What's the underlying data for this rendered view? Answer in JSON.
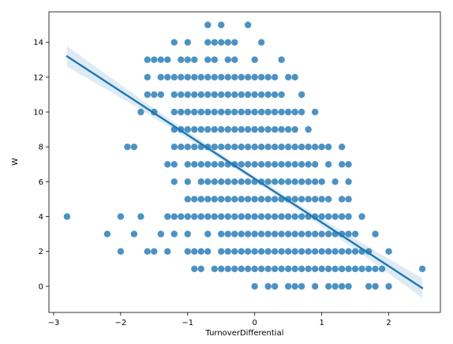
{
  "chart_data": {
    "type": "scatter",
    "title": "",
    "xlabel": "TurnoverDifferential",
    "ylabel": "W",
    "xlim": [
      -3.07,
      2.77
    ],
    "ylim": [
      -1.5,
      15.75
    ],
    "xticks": [
      -3,
      -2,
      -1,
      0,
      1,
      2
    ],
    "yticks": [
      0,
      2,
      4,
      6,
      8,
      10,
      12,
      14
    ],
    "grid": false,
    "legend": "none",
    "colors": {
      "points": "#1f77b4",
      "line": "#1f77b4",
      "band": "#1f77b4"
    },
    "point_alpha": 0.8,
    "regression": {
      "x": [
        -2.8,
        2.5
      ],
      "y": [
        13.2,
        -0.1
      ],
      "ci_halfwidth_at_ends": 0.6,
      "ci_halfwidth_at_center": 0.15,
      "ci_center_x": -0.1
    },
    "points": [
      [
        -2.8,
        4
      ],
      [
        -2.2,
        3
      ],
      [
        -2.0,
        2
      ],
      [
        -2.0,
        4
      ],
      [
        -1.9,
        8
      ],
      [
        -1.8,
        8
      ],
      [
        -1.8,
        3
      ],
      [
        -1.7,
        4
      ],
      [
        -1.7,
        10
      ],
      [
        -1.6,
        2
      ],
      [
        -1.6,
        11
      ],
      [
        -1.6,
        12
      ],
      [
        -1.6,
        13
      ],
      [
        -1.5,
        2
      ],
      [
        -1.5,
        11
      ],
      [
        -1.5,
        13
      ],
      [
        -1.5,
        10
      ],
      [
        -1.4,
        3
      ],
      [
        -1.4,
        11
      ],
      [
        -1.4,
        12
      ],
      [
        -1.4,
        13
      ],
      [
        -1.3,
        2
      ],
      [
        -1.3,
        4
      ],
      [
        -1.3,
        7
      ],
      [
        -1.3,
        12
      ],
      [
        -1.3,
        13
      ],
      [
        -1.2,
        3
      ],
      [
        -1.2,
        4
      ],
      [
        -1.2,
        6
      ],
      [
        -1.2,
        7
      ],
      [
        -1.2,
        8
      ],
      [
        -1.2,
        9
      ],
      [
        -1.2,
        10
      ],
      [
        -1.2,
        11
      ],
      [
        -1.2,
        12
      ],
      [
        -1.2,
        14
      ],
      [
        -1.1,
        4
      ],
      [
        -1.1,
        8
      ],
      [
        -1.1,
        9
      ],
      [
        -1.1,
        10
      ],
      [
        -1.1,
        11
      ],
      [
        -1.1,
        12
      ],
      [
        -1.1,
        13
      ],
      [
        -1.0,
        2
      ],
      [
        -1.0,
        3
      ],
      [
        -1.0,
        4
      ],
      [
        -1.0,
        5
      ],
      [
        -1.0,
        6
      ],
      [
        -1.0,
        7
      ],
      [
        -1.0,
        8
      ],
      [
        -1.0,
        9
      ],
      [
        -1.0,
        10
      ],
      [
        -1.0,
        11
      ],
      [
        -1.0,
        12
      ],
      [
        -1.0,
        13
      ],
      [
        -1.0,
        14
      ],
      [
        -0.9,
        1
      ],
      [
        -0.9,
        2
      ],
      [
        -0.9,
        4
      ],
      [
        -0.9,
        5
      ],
      [
        -0.9,
        7
      ],
      [
        -0.9,
        8
      ],
      [
        -0.9,
        9
      ],
      [
        -0.9,
        10
      ],
      [
        -0.9,
        11
      ],
      [
        -0.9,
        12
      ],
      [
        -0.9,
        13
      ],
      [
        -0.8,
        1
      ],
      [
        -0.8,
        2
      ],
      [
        -0.8,
        4
      ],
      [
        -0.8,
        5
      ],
      [
        -0.8,
        6
      ],
      [
        -0.8,
        7
      ],
      [
        -0.8,
        8
      ],
      [
        -0.8,
        9
      ],
      [
        -0.8,
        10
      ],
      [
        -0.8,
        11
      ],
      [
        -0.8,
        12
      ],
      [
        -0.7,
        2
      ],
      [
        -0.7,
        3
      ],
      [
        -0.7,
        4
      ],
      [
        -0.7,
        5
      ],
      [
        -0.7,
        6
      ],
      [
        -0.7,
        7
      ],
      [
        -0.7,
        8
      ],
      [
        -0.7,
        9
      ],
      [
        -0.7,
        10
      ],
      [
        -0.7,
        11
      ],
      [
        -0.7,
        12
      ],
      [
        -0.7,
        13
      ],
      [
        -0.7,
        14
      ],
      [
        -0.7,
        15
      ],
      [
        -0.6,
        1
      ],
      [
        -0.6,
        4
      ],
      [
        -0.6,
        5
      ],
      [
        -0.6,
        6
      ],
      [
        -0.6,
        7
      ],
      [
        -0.6,
        8
      ],
      [
        -0.6,
        9
      ],
      [
        -0.6,
        10
      ],
      [
        -0.6,
        11
      ],
      [
        -0.6,
        12
      ],
      [
        -0.6,
        13
      ],
      [
        -0.6,
        14
      ],
      [
        -0.5,
        1
      ],
      [
        -0.5,
        2
      ],
      [
        -0.5,
        3
      ],
      [
        -0.5,
        4
      ],
      [
        -0.5,
        5
      ],
      [
        -0.5,
        6
      ],
      [
        -0.5,
        7
      ],
      [
        -0.5,
        8
      ],
      [
        -0.5,
        9
      ],
      [
        -0.5,
        10
      ],
      [
        -0.5,
        11
      ],
      [
        -0.5,
        12
      ],
      [
        -0.5,
        14
      ],
      [
        -0.5,
        15
      ],
      [
        -0.4,
        1
      ],
      [
        -0.4,
        2
      ],
      [
        -0.4,
        3
      ],
      [
        -0.4,
        4
      ],
      [
        -0.4,
        5
      ],
      [
        -0.4,
        6
      ],
      [
        -0.4,
        7
      ],
      [
        -0.4,
        8
      ],
      [
        -0.4,
        9
      ],
      [
        -0.4,
        10
      ],
      [
        -0.4,
        11
      ],
      [
        -0.4,
        12
      ],
      [
        -0.4,
        13
      ],
      [
        -0.4,
        14
      ],
      [
        -0.3,
        1
      ],
      [
        -0.3,
        2
      ],
      [
        -0.3,
        3
      ],
      [
        -0.3,
        4
      ],
      [
        -0.3,
        5
      ],
      [
        -0.3,
        6
      ],
      [
        -0.3,
        7
      ],
      [
        -0.3,
        8
      ],
      [
        -0.3,
        9
      ],
      [
        -0.3,
        10
      ],
      [
        -0.3,
        11
      ],
      [
        -0.3,
        12
      ],
      [
        -0.3,
        13
      ],
      [
        -0.3,
        14
      ],
      [
        -0.2,
        1
      ],
      [
        -0.2,
        2
      ],
      [
        -0.2,
        3
      ],
      [
        -0.2,
        4
      ],
      [
        -0.2,
        5
      ],
      [
        -0.2,
        6
      ],
      [
        -0.2,
        7
      ],
      [
        -0.2,
        8
      ],
      [
        -0.2,
        9
      ],
      [
        -0.2,
        10
      ],
      [
        -0.2,
        11
      ],
      [
        -0.2,
        12
      ],
      [
        -0.1,
        1
      ],
      [
        -0.1,
        2
      ],
      [
        -0.1,
        3
      ],
      [
        -0.1,
        4
      ],
      [
        -0.1,
        5
      ],
      [
        -0.1,
        6
      ],
      [
        -0.1,
        7
      ],
      [
        -0.1,
        8
      ],
      [
        -0.1,
        9
      ],
      [
        -0.1,
        10
      ],
      [
        -0.1,
        11
      ],
      [
        -0.1,
        12
      ],
      [
        -0.1,
        15
      ],
      [
        0.0,
        0
      ],
      [
        0.0,
        1
      ],
      [
        0.0,
        2
      ],
      [
        0.0,
        3
      ],
      [
        0.0,
        4
      ],
      [
        0.0,
        5
      ],
      [
        0.0,
        6
      ],
      [
        0.0,
        7
      ],
      [
        0.0,
        8
      ],
      [
        0.0,
        9
      ],
      [
        0.0,
        10
      ],
      [
        0.0,
        11
      ],
      [
        0.0,
        12
      ],
      [
        0.0,
        13
      ],
      [
        0.1,
        1
      ],
      [
        0.1,
        2
      ],
      [
        0.1,
        3
      ],
      [
        0.1,
        4
      ],
      [
        0.1,
        5
      ],
      [
        0.1,
        6
      ],
      [
        0.1,
        7
      ],
      [
        0.1,
        8
      ],
      [
        0.1,
        9
      ],
      [
        0.1,
        10
      ],
      [
        0.1,
        11
      ],
      [
        0.1,
        12
      ],
      [
        0.1,
        14
      ],
      [
        0.2,
        0
      ],
      [
        0.2,
        1
      ],
      [
        0.2,
        2
      ],
      [
        0.2,
        3
      ],
      [
        0.2,
        4
      ],
      [
        0.2,
        5
      ],
      [
        0.2,
        6
      ],
      [
        0.2,
        7
      ],
      [
        0.2,
        8
      ],
      [
        0.2,
        9
      ],
      [
        0.2,
        10
      ],
      [
        0.2,
        11
      ],
      [
        0.2,
        12
      ],
      [
        0.3,
        0
      ],
      [
        0.3,
        1
      ],
      [
        0.3,
        2
      ],
      [
        0.3,
        3
      ],
      [
        0.3,
        4
      ],
      [
        0.3,
        5
      ],
      [
        0.3,
        6
      ],
      [
        0.3,
        7
      ],
      [
        0.3,
        8
      ],
      [
        0.3,
        9
      ],
      [
        0.3,
        10
      ],
      [
        0.3,
        11
      ],
      [
        0.3,
        12
      ],
      [
        0.4,
        1
      ],
      [
        0.4,
        2
      ],
      [
        0.4,
        3
      ],
      [
        0.4,
        4
      ],
      [
        0.4,
        5
      ],
      [
        0.4,
        6
      ],
      [
        0.4,
        7
      ],
      [
        0.4,
        8
      ],
      [
        0.4,
        9
      ],
      [
        0.4,
        10
      ],
      [
        0.4,
        11
      ],
      [
        0.4,
        13
      ],
      [
        0.5,
        0
      ],
      [
        0.5,
        1
      ],
      [
        0.5,
        2
      ],
      [
        0.5,
        3
      ],
      [
        0.5,
        4
      ],
      [
        0.5,
        5
      ],
      [
        0.5,
        6
      ],
      [
        0.5,
        7
      ],
      [
        0.5,
        8
      ],
      [
        0.5,
        9
      ],
      [
        0.5,
        10
      ],
      [
        0.5,
        12
      ],
      [
        0.6,
        0
      ],
      [
        0.6,
        1
      ],
      [
        0.6,
        2
      ],
      [
        0.6,
        3
      ],
      [
        0.6,
        4
      ],
      [
        0.6,
        5
      ],
      [
        0.6,
        6
      ],
      [
        0.6,
        7
      ],
      [
        0.6,
        8
      ],
      [
        0.6,
        9
      ],
      [
        0.6,
        10
      ],
      [
        0.6,
        12
      ],
      [
        0.7,
        0
      ],
      [
        0.7,
        1
      ],
      [
        0.7,
        2
      ],
      [
        0.7,
        3
      ],
      [
        0.7,
        4
      ],
      [
        0.7,
        5
      ],
      [
        0.7,
        6
      ],
      [
        0.7,
        7
      ],
      [
        0.7,
        8
      ],
      [
        0.7,
        10
      ],
      [
        0.7,
        11
      ],
      [
        0.8,
        1
      ],
      [
        0.8,
        2
      ],
      [
        0.8,
        3
      ],
      [
        0.8,
        4
      ],
      [
        0.8,
        5
      ],
      [
        0.8,
        6
      ],
      [
        0.8,
        7
      ],
      [
        0.8,
        8
      ],
      [
        0.8,
        9
      ],
      [
        0.9,
        0
      ],
      [
        0.9,
        1
      ],
      [
        0.9,
        2
      ],
      [
        0.9,
        3
      ],
      [
        0.9,
        4
      ],
      [
        0.9,
        5
      ],
      [
        0.9,
        6
      ],
      [
        0.9,
        7
      ],
      [
        0.9,
        8
      ],
      [
        0.9,
        10
      ],
      [
        1.0,
        1
      ],
      [
        1.0,
        2
      ],
      [
        1.0,
        3
      ],
      [
        1.0,
        4
      ],
      [
        1.0,
        5
      ],
      [
        1.0,
        6
      ],
      [
        1.0,
        8
      ],
      [
        1.1,
        0
      ],
      [
        1.1,
        1
      ],
      [
        1.1,
        2
      ],
      [
        1.1,
        3
      ],
      [
        1.1,
        4
      ],
      [
        1.1,
        5
      ],
      [
        1.1,
        7
      ],
      [
        1.1,
        8
      ],
      [
        1.2,
        0
      ],
      [
        1.2,
        1
      ],
      [
        1.2,
        2
      ],
      [
        1.2,
        3
      ],
      [
        1.2,
        4
      ],
      [
        1.2,
        6
      ],
      [
        1.3,
        0
      ],
      [
        1.3,
        1
      ],
      [
        1.3,
        2
      ],
      [
        1.3,
        3
      ],
      [
        1.3,
        4
      ],
      [
        1.3,
        5
      ],
      [
        1.3,
        7
      ],
      [
        1.3,
        8
      ],
      [
        1.4,
        0
      ],
      [
        1.4,
        1
      ],
      [
        1.4,
        2
      ],
      [
        1.4,
        3
      ],
      [
        1.4,
        4
      ],
      [
        1.4,
        5
      ],
      [
        1.4,
        6
      ],
      [
        1.4,
        7
      ],
      [
        1.5,
        1
      ],
      [
        1.5,
        2
      ],
      [
        1.5,
        3
      ],
      [
        1.6,
        1
      ],
      [
        1.6,
        2
      ],
      [
        1.6,
        4
      ],
      [
        1.7,
        0
      ],
      [
        1.7,
        1
      ],
      [
        1.7,
        2
      ],
      [
        1.8,
        0
      ],
      [
        1.8,
        1
      ],
      [
        1.8,
        3
      ],
      [
        1.9,
        1
      ],
      [
        2.0,
        0
      ],
      [
        2.0,
        2
      ],
      [
        2.5,
        1
      ]
    ]
  }
}
